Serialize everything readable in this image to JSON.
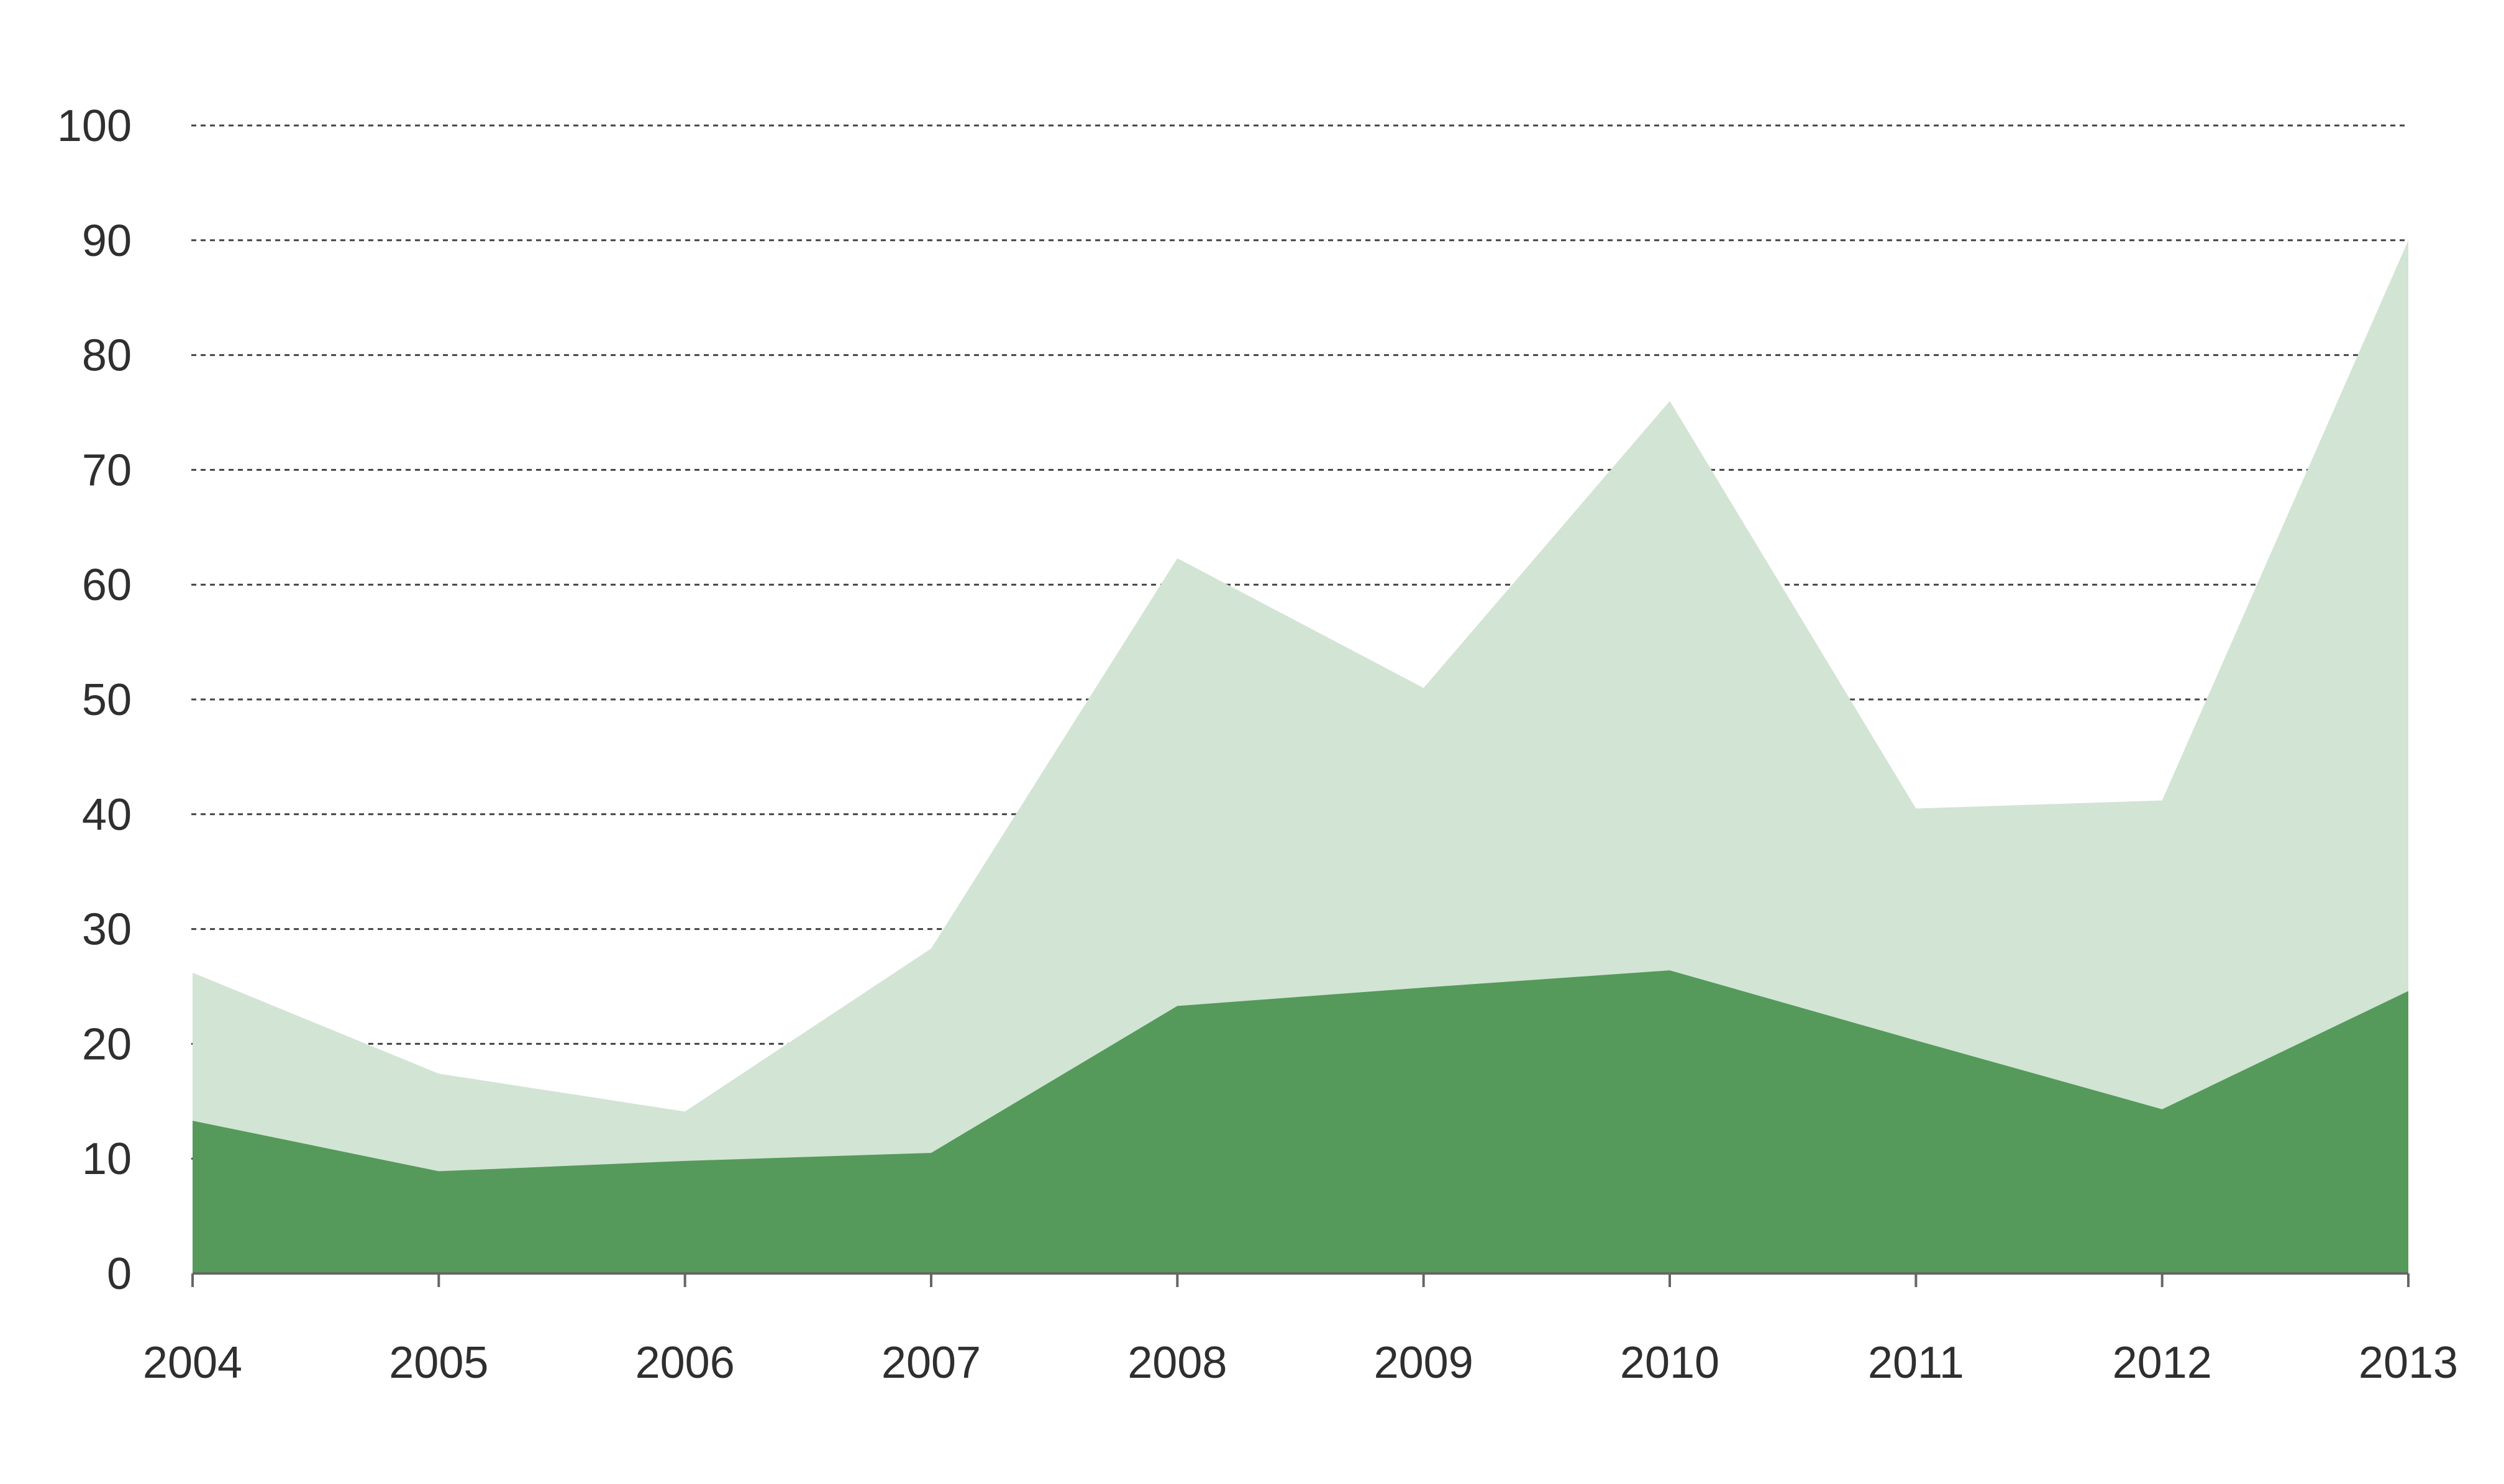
{
  "chart_data": {
    "type": "area",
    "stacked": false,
    "title": "",
    "xlabel": "",
    "ylabel": "",
    "x": [
      "2004",
      "2005",
      "2006",
      "2007",
      "2008",
      "2009",
      "2010",
      "2011",
      "2012",
      "2013"
    ],
    "y_ticks": [
      "0",
      "10",
      "20",
      "30",
      "40",
      "50",
      "60",
      "70",
      "80",
      "90",
      "100"
    ],
    "ylim": [
      0,
      100
    ],
    "grid": "horizontal-dotted",
    "legend": "none",
    "series": [
      {
        "values": [
          26.2,
          17.4,
          14.1,
          28.3,
          62.3,
          51.0,
          76.0,
          40.5,
          41.2,
          90.0
        ],
        "color": "#d2e4d4"
      },
      {
        "values": [
          13.3,
          8.9,
          9.8,
          10.5,
          23.3,
          24.9,
          26.4,
          20.3,
          14.3,
          24.6
        ],
        "color": "#559a5b"
      }
    ]
  }
}
